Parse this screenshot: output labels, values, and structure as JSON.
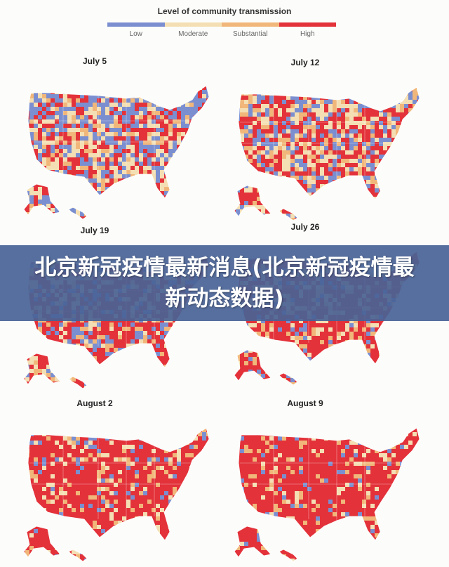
{
  "banner": {
    "title": "北京新冠疫情最新消息(北京新冠疫情最新动态数据)"
  },
  "legend": {
    "title": "Level of community transmission",
    "levels": [
      {
        "label": "Low",
        "color": "#7b8fd0"
      },
      {
        "label": "Moderate",
        "color": "#f4dfb4"
      },
      {
        "label": "Substantial",
        "color": "#f1b77a"
      },
      {
        "label": "High",
        "color": "#e3323a"
      }
    ]
  },
  "maps": [
    {
      "date": "July 5",
      "high_share": 0.28,
      "low_share": 0.34,
      "substantial_share": 0.13
    },
    {
      "date": "July 12",
      "high_share": 0.4,
      "low_share": 0.24,
      "substantial_share": 0.14
    },
    {
      "date": "July 19",
      "high_share": 0.55,
      "low_share": 0.16,
      "substantial_share": 0.13
    },
    {
      "date": "July 26",
      "high_share": 0.65,
      "low_share": 0.1,
      "substantial_share": 0.12
    },
    {
      "date": "August 2",
      "high_share": 0.75,
      "low_share": 0.06,
      "substantial_share": 0.1
    },
    {
      "date": "August 9",
      "high_share": 0.82,
      "low_share": 0.04,
      "substantial_share": 0.08
    }
  ]
}
